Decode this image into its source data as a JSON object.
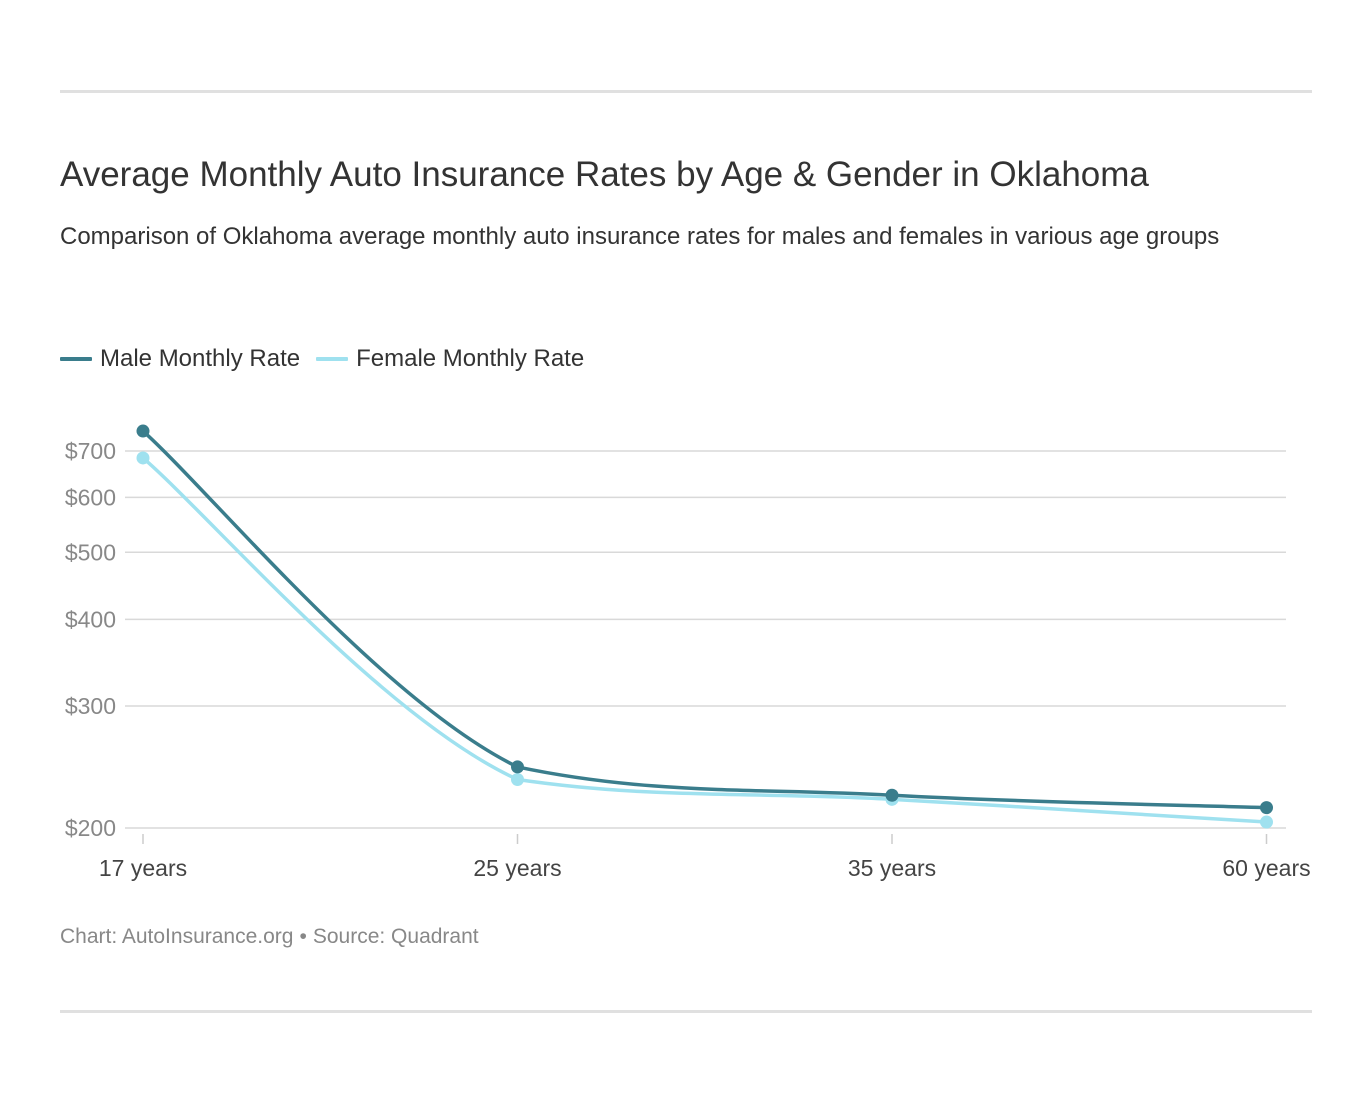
{
  "title": "Average Monthly Auto Insurance Rates by Age & Gender in Oklahoma",
  "subtitle": "Comparison of Oklahoma average monthly auto insurance rates for males and females in various age groups",
  "legend": {
    "male": "Male Monthly Rate",
    "female": "Female Monthly Rate"
  },
  "footer": {
    "chart": "Chart: AutoInsurance.org",
    "separator": "•",
    "source": "Source: Quadrant"
  },
  "colors": {
    "male": "#3a7d8c",
    "female": "#9fe1ef",
    "grid": "#d9d9d9",
    "axis_text": "#888888",
    "category_text": "#444444"
  },
  "chart_data": {
    "type": "line",
    "title": "Average Monthly Auto Insurance Rates by Age & Gender in Oklahoma",
    "categories": [
      "17 years",
      "25 years",
      "35 years",
      "60 years"
    ],
    "series": [
      {
        "name": "Male Monthly Rate",
        "values": [
          748,
          245,
          223,
          214
        ]
      },
      {
        "name": "Female Monthly Rate",
        "values": [
          684,
          235,
          220,
          204
        ]
      }
    ],
    "y_scale": "log",
    "y_ticks": [
      200,
      300,
      400,
      500,
      600,
      700
    ],
    "y_tick_labels": [
      "$200",
      "$300",
      "$400",
      "$500",
      "$600",
      "$700"
    ],
    "grid": true,
    "legend_position": "top-left",
    "xlabel": "",
    "ylabel": ""
  }
}
